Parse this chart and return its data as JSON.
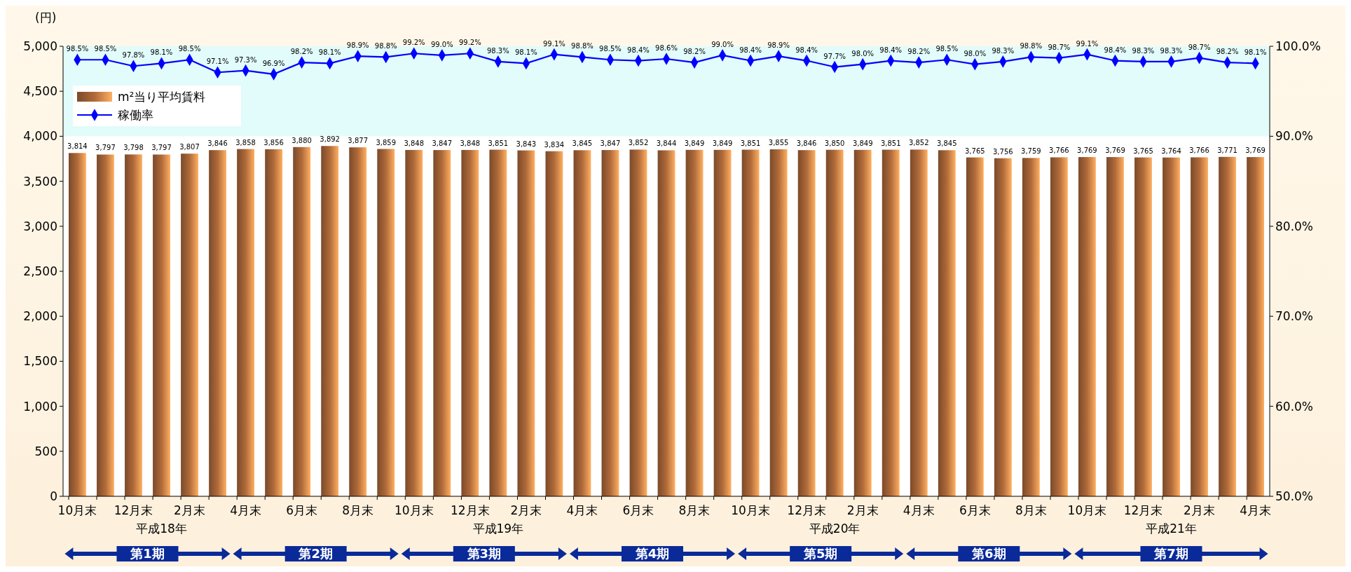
{
  "chart_data": {
    "type": "bar",
    "ylabel": "(円)",
    "categories": [
      "10月末",
      null,
      "12月末",
      null,
      "2月末",
      null,
      "4月末",
      null,
      "6月末",
      null,
      "8月末",
      null,
      "10月末",
      null,
      "12月末",
      null,
      "2月末",
      null,
      "4月末",
      null,
      "6月末",
      null,
      "8月末",
      null,
      "10月末",
      null,
      "12月末",
      null,
      "2月末",
      null,
      "4月末",
      null,
      "6月末",
      null,
      "8月末",
      null,
      "10月末",
      null,
      "12月末",
      null,
      "2月末",
      null,
      "4月末"
    ],
    "series": [
      {
        "name": "m²当り平均賃料",
        "color": "#b06a3a",
        "values": [
          3814,
          3797,
          3798,
          3797,
          3807,
          3846,
          3858,
          3856,
          3880,
          3892,
          3877,
          3859,
          3848,
          3847,
          3848,
          3851,
          3843,
          3834,
          3845,
          3847,
          3852,
          3844,
          3849,
          3849,
          3851,
          3855,
          3846,
          3850,
          3849,
          3851,
          3852,
          3845,
          3765,
          3756,
          3759,
          3766,
          3769,
          3769,
          3765,
          3764,
          3766,
          3771,
          3769
        ],
        "value_labels": [
          "3,814",
          "3,797",
          "3,798",
          "3,797",
          "3,807",
          "3,846",
          "3,858",
          "3,856",
          "3,880",
          "3,892",
          "3,877",
          "3,859",
          "3,848",
          "3,847",
          "3,848",
          "3,851",
          "3,843",
          "3,834",
          "3,845",
          "3,847",
          "3,852",
          "3,844",
          "3,849",
          "3,849",
          "3,851",
          "3,855",
          "3,846",
          "3,850",
          "3,849",
          "3,851",
          "3,852",
          "3,845",
          "3,765",
          "3,756",
          "3,759",
          "3,766",
          "3,769",
          "3,769",
          "3,765",
          "3,764",
          "3,766",
          "3,771",
          "3,769"
        ]
      },
      {
        "name": "稼働率",
        "type": "line",
        "axis": "y2",
        "color": "#0000ff",
        "marker": "diamond",
        "values": [
          98.5,
          98.5,
          97.8,
          98.1,
          98.5,
          97.1,
          97.3,
          96.9,
          98.2,
          98.1,
          98.9,
          98.8,
          99.2,
          99.0,
          99.2,
          98.3,
          98.1,
          99.1,
          98.8,
          98.5,
          98.4,
          98.6,
          98.2,
          99.0,
          98.4,
          98.9,
          98.4,
          97.7,
          98.0,
          98.4,
          98.2,
          98.5,
          98.0,
          98.3,
          98.8,
          98.7,
          99.1,
          98.4,
          98.3,
          98.3,
          98.7,
          98.2,
          98.1
        ],
        "value_labels": [
          "98.5%",
          "98.5%",
          "97.8%",
          "98.1%",
          "98.5%",
          "97.1%",
          "97.3%",
          "96.9%",
          "98.2%",
          "98.1%",
          "98.9%",
          "98.8%",
          "99.2%",
          "99.0%",
          "99.2%",
          "98.3%",
          "98.1%",
          "99.1%",
          "98.8%",
          "98.5%",
          "98.4%",
          "98.6%",
          "98.2%",
          "99.0%",
          "98.4%",
          "98.9%",
          "98.4%",
          "97.7%",
          "98.0%",
          "98.4%",
          "98.2%",
          "98.5%",
          "98.0%",
          "98.3%",
          "98.8%",
          "98.7%",
          "99.1%",
          "98.4%",
          "98.3%",
          "98.3%",
          "98.7%",
          "98.2%",
          "98.1%"
        ]
      }
    ],
    "ylim": [
      0,
      5000
    ],
    "yticks": [
      0,
      500,
      {
        "value": 1000,
        "label": "1,000"
      },
      {
        "value": 1500,
        "label": "1,500"
      },
      {
        "value": 2000,
        "label": "2,000"
      },
      {
        "value": 2500,
        "label": "2,500"
      },
      {
        "value": 3000,
        "label": "3,000"
      },
      {
        "value": 3500,
        "label": "3,500"
      },
      {
        "value": 4000,
        "label": "4,000"
      },
      {
        "value": 4500,
        "label": "4,500"
      },
      {
        "value": 5000,
        "label": "5,000"
      }
    ],
    "y2lim": [
      50,
      100
    ],
    "y2ticks": [
      {
        "value": 50,
        "label": "50.0%"
      },
      {
        "value": 60,
        "label": "60.0%"
      },
      {
        "value": 70,
        "label": "70.0%"
      },
      {
        "value": 80,
        "label": "80.0%"
      },
      {
        "value": 90,
        "label": "90.0%"
      },
      {
        "value": 100,
        "label": "100.0%"
      }
    ],
    "bands": [
      {
        "axis": "y",
        "from": 4000,
        "to": 5000,
        "color": "#e2fbfb"
      }
    ],
    "legend": "top left",
    "annotations": [
      "平成18年",
      "平成19年",
      "平成20年",
      "平成21年",
      "第1期",
      "第2期",
      "第3期",
      "第4期",
      "第5期",
      "第6期",
      "第7期"
    ]
  }
}
